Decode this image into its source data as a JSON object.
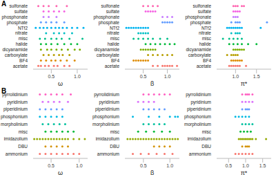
{
  "chart_data": [
    {
      "type": "scatter",
      "title": "A",
      "x_label": "ω",
      "categories": [
        "acetate",
        "BF4",
        "carboxylate",
        "dicyanamide",
        "halide",
        "misc",
        "nitrate",
        "NTf2",
        "phosphate",
        "phosphonate",
        "sulfate",
        "sulfonate"
      ],
      "colors": [
        "#F8766D",
        "#DE8C00",
        "#B79F00",
        "#7CAE00",
        "#00BA38",
        "#00C08B",
        "#00BFC4",
        "#00B4F0",
        "#619CFF",
        "#C77CFF",
        "#F564E3",
        "#FF64B0"
      ],
      "values": [
        [
          0.25,
          0.3,
          0.38,
          0.45,
          0.55,
          0.62,
          0.75,
          0.85
        ],
        [
          0.3,
          0.4,
          0.5,
          0.58,
          0.68,
          0.8,
          0.95
        ],
        [
          0.35,
          0.45,
          0.55,
          0.65,
          0.72,
          0.85
        ],
        [
          0.3,
          0.42,
          0.5,
          0.6,
          0.7,
          0.82,
          0.95,
          1.05
        ],
        [
          0.3,
          0.4,
          0.5,
          0.62,
          0.75,
          0.88,
          1.0
        ],
        [
          0.28,
          0.38,
          0.5,
          0.6,
          0.7,
          0.85,
          1.1
        ],
        [
          0.4,
          0.55,
          0.65,
          0.75,
          0.9
        ],
        [
          0.2,
          0.28,
          0.35,
          0.42,
          0.5,
          0.58,
          0.65,
          0.72,
          0.8,
          0.9,
          1.0,
          1.12
        ],
        [
          0.3,
          0.4,
          0.5,
          0.6,
          0.75
        ],
        [
          0.35,
          0.45,
          0.6
        ],
        [
          0.35,
          0.45,
          0.55,
          0.65,
          0.75
        ],
        [
          0.25,
          0.35,
          0.45,
          0.6,
          0.8
        ]
      ],
      "xlim": [
        0.15,
        1.2
      ],
      "xticks": [
        0.5,
        {
          "value": 1,
          "label": "1.0"
        }
      ]
    },
    {
      "type": "scatter",
      "x_label": "β",
      "categories": [
        "acetate",
        "BF4",
        "carboxylate",
        "dicyanamide",
        "halide",
        "misc",
        "nitrate",
        "NTf2",
        "phosphate",
        "phosphonate",
        "sulfate",
        "sulfonate"
      ],
      "colors": [
        "#F8766D",
        "#DE8C00",
        "#B79F00",
        "#7CAE00",
        "#00BA38",
        "#00C08B",
        "#00BFC4",
        "#00B4F0",
        "#619CFF",
        "#C77CFF",
        "#F564E3",
        "#FF64B0"
      ],
      "values": [
        [
          0.7,
          0.8,
          0.9,
          0.95,
          1.0,
          1.05,
          1.1,
          1.2
        ],
        [
          0.3,
          0.35,
          0.4,
          0.45,
          0.5,
          0.55,
          0.6
        ],
        [
          0.6,
          0.7,
          0.8,
          0.9,
          1.0,
          1.1
        ],
        [
          0.45,
          0.5,
          0.55,
          0.6,
          0.65,
          0.7,
          0.75
        ],
        [
          0.55,
          0.65,
          0.75,
          0.85,
          0.95,
          1.05,
          1.15
        ],
        [
          0.3,
          0.4,
          0.5,
          0.6,
          0.7,
          0.85,
          1.0
        ],
        [
          0.4,
          0.45,
          0.5,
          0.55,
          0.6
        ],
        [
          0.15,
          0.2,
          0.25,
          0.3,
          0.35,
          0.4,
          0.45,
          0.5,
          0.55,
          0.6
        ],
        [
          0.9,
          0.95,
          1.0,
          1.05,
          1.1
        ],
        [
          0.9,
          1.0,
          1.1
        ],
        [
          0.55,
          0.6,
          0.65,
          0.7,
          0.75
        ],
        [
          0.5,
          0.6,
          0.7,
          0.8
        ]
      ],
      "xlim": [
        0.12,
        1.25
      ],
      "xticks": [
        0.5,
        {
          "value": 1,
          "label": "1.0"
        }
      ]
    },
    {
      "type": "scatter",
      "x_label": "π*",
      "categories": [
        "acetate",
        "BF4",
        "carboxylate",
        "dicyanamide",
        "halide",
        "misc",
        "nitrate",
        "NTf2",
        "phosphate",
        "phosphonate",
        "sulfate",
        "sulfonate"
      ],
      "colors": [
        "#F8766D",
        "#DE8C00",
        "#B79F00",
        "#7CAE00",
        "#00BA38",
        "#00C08B",
        "#00BFC4",
        "#00B4F0",
        "#619CFF",
        "#C77CFF",
        "#F564E3",
        "#FF64B0"
      ],
      "values": [
        [
          0.85,
          0.9,
          0.95,
          1.0,
          1.05,
          1.1,
          1.25
        ],
        [
          0.9,
          0.95,
          1.0,
          1.05,
          1.1,
          1.15
        ],
        [
          0.8,
          0.9,
          0.95,
          1.0,
          1.05
        ],
        [
          0.95,
          1.0,
          1.05,
          1.1,
          1.15,
          1.2
        ],
        [
          0.85,
          0.95,
          1.05,
          1.15,
          1.3,
          1.5
        ],
        [
          0.7,
          0.85,
          0.95,
          1.05,
          1.15
        ],
        [
          0.9,
          1.0,
          1.05,
          1.1
        ],
        [
          0.8,
          0.85,
          0.9,
          0.95,
          1.0,
          1.05,
          1.1,
          1.15,
          1.6
        ],
        [
          0.9,
          1.0,
          1.05,
          1.1,
          1.75
        ],
        [
          0.95,
          1.0,
          1.05
        ],
        [
          0.95,
          1.0,
          1.05,
          1.1
        ],
        [
          0.95,
          1.0,
          1.05,
          1.15,
          1.2
        ]
      ],
      "xlim": [
        0.55,
        1.85
      ],
      "xticks": [
        {
          "value": 1,
          "label": "1.0"
        },
        1.5
      ]
    },
    {
      "type": "scatter",
      "title": "B",
      "x_label": "ω",
      "categories": [
        "ammonium",
        "DBU",
        "imidazolium",
        "misc",
        "morpholinium",
        "phosphonium",
        "piperidinium",
        "pyridinium",
        "pyrrolidinium"
      ],
      "colors": [
        "#F8766D",
        "#D39200",
        "#93AA00",
        "#00BA38",
        "#00C19F",
        "#00B9E3",
        "#619CFF",
        "#DB72FB",
        "#FF61C3"
      ],
      "values": [
        [
          0.3,
          0.4,
          0.5,
          0.6,
          0.7,
          0.8,
          0.9,
          1.0
        ],
        [
          0.4,
          0.5,
          0.6,
          0.7,
          0.8
        ],
        [
          0.2,
          0.25,
          0.3,
          0.35,
          0.4,
          0.45,
          0.5,
          0.55,
          0.6,
          0.65,
          0.7,
          0.75,
          0.8,
          0.9,
          1.0,
          1.1
        ],
        [
          0.4,
          0.5,
          0.6,
          0.7,
          0.8,
          0.9
        ],
        [
          0.35,
          0.45,
          0.55,
          0.65,
          0.75
        ],
        [
          0.3,
          0.4,
          0.5,
          0.6,
          0.7
        ],
        [
          0.3,
          0.4,
          0.5,
          0.6,
          0.7
        ],
        [
          0.35,
          0.45,
          0.55,
          0.65,
          0.8
        ],
        [
          0.3,
          0.4,
          0.5,
          0.6,
          0.7,
          0.85
        ]
      ],
      "xlim": [
        0.18,
        1.15
      ],
      "xticks": [
        0.5,
        {
          "value": 1,
          "label": "1.0"
        }
      ]
    },
    {
      "type": "scatter",
      "x_label": "β",
      "categories": [
        "ammonium",
        "DBU",
        "imidazolium",
        "misc",
        "morpholinium",
        "phosphonium",
        "piperidinium",
        "pyridinium",
        "pyrrolidinium"
      ],
      "colors": [
        "#F8766D",
        "#D39200",
        "#93AA00",
        "#00BA38",
        "#00C19F",
        "#00B9E3",
        "#619CFF",
        "#DB72FB",
        "#FF61C3"
      ],
      "values": [
        [
          0.3,
          0.45,
          0.6,
          0.75,
          0.9,
          1.05
        ],
        [
          0.7,
          0.8,
          0.9,
          1.0
        ],
        [
          0.2,
          0.25,
          0.3,
          0.35,
          0.4,
          0.45,
          0.5,
          0.55,
          0.6,
          0.65,
          0.7,
          0.75,
          0.8,
          0.85,
          0.9,
          0.95,
          1.0,
          1.05,
          1.1,
          1.15
        ],
        [
          0.4,
          0.55,
          0.7,
          0.85,
          1.0
        ],
        [
          0.5,
          0.6,
          0.7,
          0.8,
          0.9
        ],
        [
          0.3,
          0.6,
          0.8,
          1.0,
          1.1,
          1.15
        ],
        [
          0.5,
          0.6,
          0.7,
          0.8,
          0.9
        ],
        [
          0.4,
          0.5,
          0.6,
          0.7
        ],
        [
          0.5,
          0.6,
          0.7,
          0.8,
          0.9,
          1.0
        ]
      ],
      "xlim": [
        0.15,
        1.18
      ],
      "xticks": [
        0.5,
        {
          "value": 1,
          "label": "1.0"
        }
      ]
    },
    {
      "type": "scatter",
      "x_label": "π*",
      "categories": [
        "ammonium",
        "DBU",
        "imidazolium",
        "misc",
        "morpholinium",
        "phosphonium",
        "piperidinium",
        "pyridinium",
        "pyrrolidinium"
      ],
      "colors": [
        "#F8766D",
        "#D39200",
        "#93AA00",
        "#00BA38",
        "#00C19F",
        "#00B9E3",
        "#619CFF",
        "#DB72FB",
        "#FF61C3"
      ],
      "values": [
        [
          0.7,
          0.8,
          0.9,
          1.0,
          1.1,
          1.2
        ],
        [
          0.9,
          1.0,
          1.05,
          1.1
        ],
        [
          0.8,
          0.85,
          0.9,
          0.95,
          1.0,
          1.05,
          1.1,
          1.15,
          1.2,
          1.3,
          1.6
        ],
        [
          0.85,
          0.95,
          1.05,
          1.15
        ],
        [
          0.9,
          1.0,
          1.1,
          1.2
        ],
        [
          0.7,
          0.8,
          0.9,
          1.0,
          1.1
        ],
        [
          0.9,
          1.0,
          1.05,
          1.1
        ],
        [
          0.9,
          1.0,
          1.1,
          1.2
        ],
        [
          0.9,
          1.0,
          1.05,
          1.1,
          1.2
        ]
      ],
      "xlim": [
        0.15,
        1.75
      ],
      "xticks": [
        0.5,
        {
          "value": 1,
          "label": "1.0"
        },
        1.5
      ]
    }
  ]
}
